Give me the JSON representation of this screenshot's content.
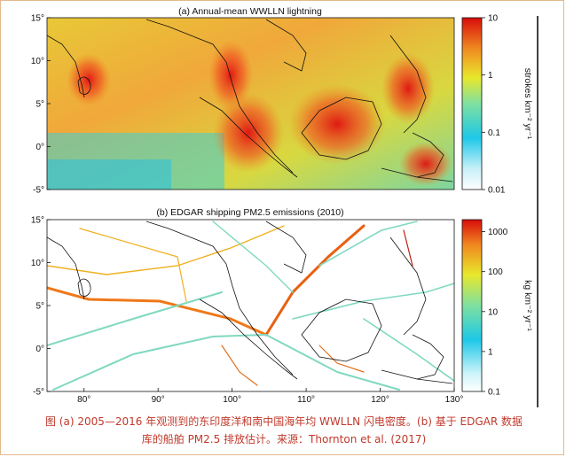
{
  "chart_data": [
    {
      "type": "heatmap",
      "title": "(a) Annual-mean WWLLN lightning",
      "colorbar_label": "strokes km⁻² yr⁻¹",
      "colorbar_scale": "log",
      "colorbar_ticks": [
        "10",
        "1",
        "0.1",
        "0.01"
      ],
      "colorbar_range": [
        0.01,
        10
      ],
      "lon_range": [
        75,
        130
      ],
      "lat_range": [
        -5,
        15
      ],
      "y_ticks": [
        "15°",
        "10°",
        "5°",
        "0°",
        "-5°"
      ],
      "colors": [
        "#ffffff",
        "#1ec8e8",
        "#4fd8b0",
        "#c8e830",
        "#f0c828",
        "#f08020",
        "#e01010"
      ]
    },
    {
      "type": "heatmap",
      "title": "(b) EDGAR shipping PM2.5 emissions (2010)",
      "colorbar_label": "kg km⁻² yr⁻¹",
      "colorbar_scale": "log",
      "colorbar_ticks": [
        "1000",
        "100",
        "10",
        "1",
        "0.1"
      ],
      "colorbar_range": [
        0.1,
        2000
      ],
      "lon_range": [
        75,
        130
      ],
      "lat_range": [
        -5,
        15
      ],
      "x_ticks": [
        "80°",
        "90°",
        "100°",
        "110°",
        "120°",
        "130°"
      ],
      "y_ticks": [
        "15°",
        "10°",
        "5°",
        "0°",
        "-5°"
      ]
    }
  ],
  "caption": {
    "line1": "图 (a) 2005—2016 年观测到的东印度洋和南中国海年均 WWLLN 闪电密度。(b) 基于 EDGAR 数据",
    "line2": "库的船舶 PM2.5 排放估计。来源：Thornton et al. (2017)"
  },
  "colors": {
    "caption": "#c0392b",
    "frame": "#e3b88f"
  }
}
